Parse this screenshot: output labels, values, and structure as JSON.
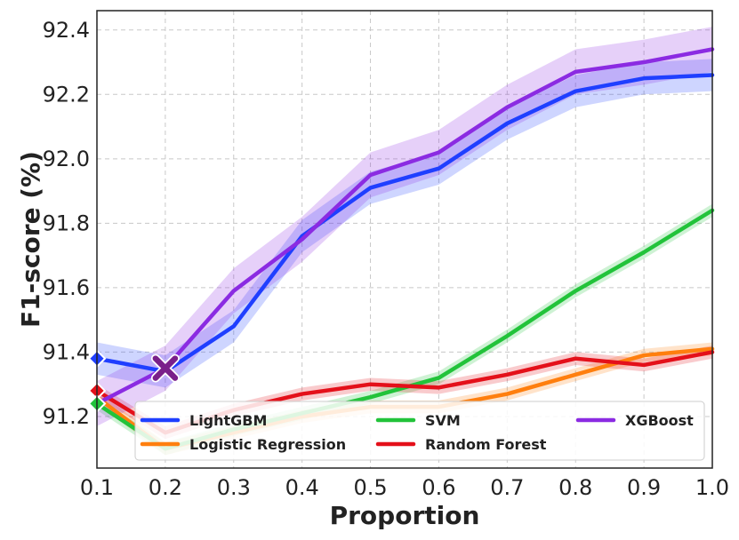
{
  "chart_data": {
    "type": "line",
    "xlabel": "Proportion",
    "ylabel": "F1-score (%)",
    "xlim": [
      0.1,
      1.0
    ],
    "ylim": [
      91.04,
      92.46
    ],
    "grid": true,
    "legend_position": "bottom",
    "x": [
      0.1,
      0.2,
      0.3,
      0.4,
      0.5,
      0.6,
      0.7,
      0.8,
      0.9,
      1.0
    ],
    "x_ticks": [
      0.1,
      0.2,
      0.3,
      0.4,
      0.5,
      0.6,
      0.7,
      0.8,
      0.9,
      1.0
    ],
    "x_tick_labels": [
      "0.1",
      "0.2",
      "0.3",
      "0.4",
      "0.5",
      "0.6",
      "0.7",
      "0.8",
      "0.9",
      "1.0"
    ],
    "y_ticks": [
      91.2,
      91.4,
      91.6,
      91.8,
      92.0,
      92.2,
      92.4
    ],
    "y_tick_labels": [
      "91.2",
      "91.4",
      "91.6",
      "91.8",
      "92.0",
      "92.2",
      "92.4"
    ],
    "series": [
      {
        "name": "LightGBM",
        "color": "#1f3fff",
        "values": [
          91.38,
          91.34,
          91.48,
          91.76,
          91.91,
          91.97,
          92.11,
          92.21,
          92.25,
          92.26
        ],
        "band": 0.05
      },
      {
        "name": "Logistic Regression",
        "color": "#ff7f0e",
        "values": [
          91.26,
          91.1,
          91.15,
          91.2,
          91.23,
          91.23,
          91.27,
          91.33,
          91.39,
          91.41
        ],
        "band": 0.02
      },
      {
        "name": "SVM",
        "color": "#22c33a",
        "values": [
          91.24,
          91.1,
          91.16,
          91.21,
          91.26,
          91.32,
          91.45,
          91.59,
          91.71,
          91.84
        ],
        "band": 0.02
      },
      {
        "name": "Random Forest",
        "color": "#e4101a",
        "values": [
          91.28,
          91.15,
          91.22,
          91.27,
          91.3,
          91.29,
          91.33,
          91.38,
          91.36,
          91.4
        ],
        "band": 0.02
      },
      {
        "name": "XGBoost",
        "color": "#8b2be2",
        "values": [
          91.24,
          91.35,
          91.59,
          91.75,
          91.95,
          92.02,
          92.16,
          92.27,
          92.3,
          92.34
        ],
        "band": 0.07
      }
    ],
    "markers": [
      {
        "series": "LightGBM",
        "x": 0.1,
        "y": 91.38,
        "shape": "diamond",
        "color": "#1f3fff"
      },
      {
        "series": "Random Forest",
        "x": 0.1,
        "y": 91.28,
        "shape": "diamond",
        "color": "#e4101a"
      },
      {
        "series": "SVM",
        "x": 0.1,
        "y": 91.24,
        "shape": "diamond",
        "color": "#22c33a"
      },
      {
        "series": "XGBoost",
        "x": 0.2,
        "y": 91.35,
        "shape": "x",
        "color": "#7a1f8a"
      }
    ],
    "legend": [
      {
        "label": "LightGBM",
        "color": "#1f3fff"
      },
      {
        "label": "SVM",
        "color": "#22c33a"
      },
      {
        "label": "XGBoost",
        "color": "#8b2be2"
      },
      {
        "label": "Logistic Regression",
        "color": "#ff7f0e"
      },
      {
        "label": "Random Forest",
        "color": "#e4101a"
      }
    ]
  }
}
